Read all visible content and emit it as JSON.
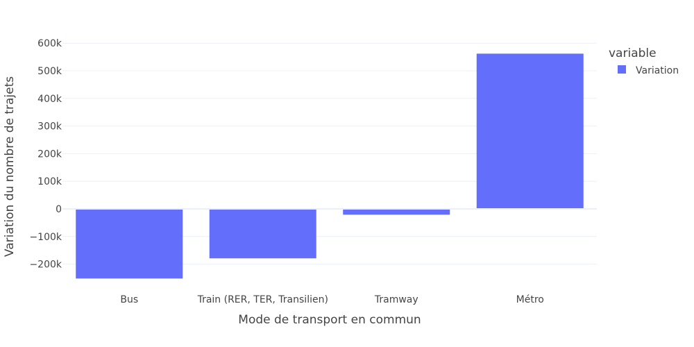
{
  "chart_data": {
    "type": "bar",
    "categories": [
      "Bus",
      "Train (RER, TER, Transilien)",
      "Tramway",
      "Métro"
    ],
    "series": [
      {
        "name": "Variation",
        "values": [
          -252000,
          -179000,
          -21000,
          562000
        ],
        "color": "#636efa"
      }
    ],
    "xlabel": "Mode de transport en commun",
    "ylabel": "Variation du nombre de trajets",
    "ylim": [
      -300000,
      600000
    ],
    "y_ticks": [
      {
        "value": 600000,
        "label": "600k"
      },
      {
        "value": 500000,
        "label": "500k"
      },
      {
        "value": 400000,
        "label": "400k"
      },
      {
        "value": 300000,
        "label": "300k"
      },
      {
        "value": 200000,
        "label": "200k"
      },
      {
        "value": 100000,
        "label": "100k"
      },
      {
        "value": 0,
        "label": "0"
      },
      {
        "value": -100000,
        "label": "−100k"
      },
      {
        "value": -200000,
        "label": "−200k"
      }
    ],
    "legend": {
      "title": "variable",
      "position": "top-right"
    },
    "grid": true
  }
}
